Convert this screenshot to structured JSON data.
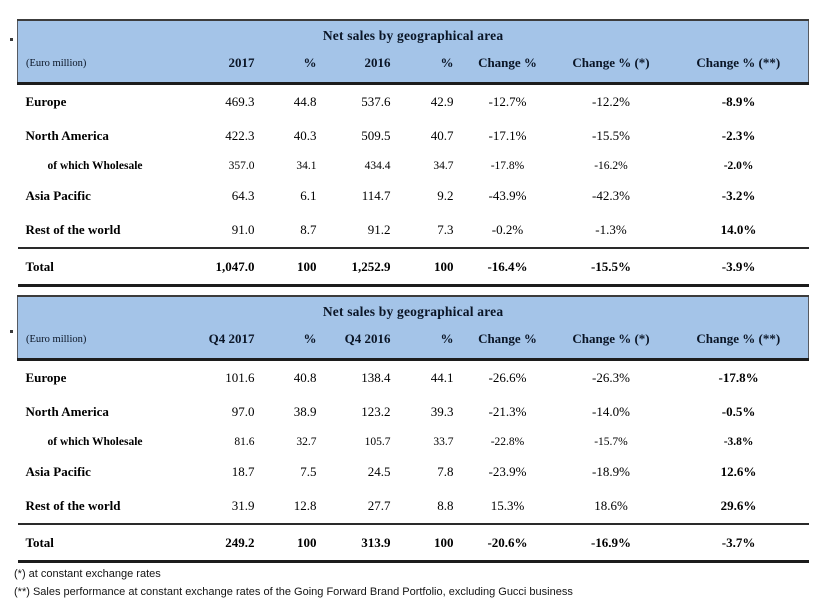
{
  "colors": {
    "header_fill": "#a4c4e8",
    "header_text": "#0a1526",
    "rule_dark": "#1c1c1c",
    "body_text": "#000000"
  },
  "tables": [
    {
      "title": "Net sales by geographical area",
      "unit_label": "(Euro million)",
      "columns": [
        "2017",
        "%",
        "2016",
        "%",
        "Change %",
        "Change % (*)",
        "Change % (**)"
      ],
      "rows": [
        {
          "label": "Europe",
          "indent": false,
          "values": [
            "469.3",
            "44.8",
            "537.6",
            "42.9",
            "-12.7%",
            "-12.2%",
            "-8.9%"
          ]
        },
        {
          "label": "North America",
          "indent": false,
          "values": [
            "422.3",
            "40.3",
            "509.5",
            "40.7",
            "-17.1%",
            "-15.5%",
            "-2.3%"
          ]
        },
        {
          "label": "of which Wholesale",
          "indent": true,
          "values": [
            "357.0",
            "34.1",
            "434.4",
            "34.7",
            "-17.8%",
            "-16.2%",
            "-2.0%"
          ]
        },
        {
          "label": "Asia Pacific",
          "indent": false,
          "values": [
            "64.3",
            "6.1",
            "114.7",
            "9.2",
            "-43.9%",
            "-42.3%",
            "-3.2%"
          ]
        },
        {
          "label": "Rest of the world",
          "indent": false,
          "values": [
            "91.0",
            "8.7",
            "91.2",
            "7.3",
            "-0.2%",
            "-1.3%",
            "14.0%"
          ]
        }
      ],
      "total": {
        "label": "Total",
        "values": [
          "1,047.0",
          "100",
          "1,252.9",
          "100",
          "-16.4%",
          "-15.5%",
          "-3.9%"
        ]
      }
    },
    {
      "title": "Net sales by geographical area",
      "unit_label": "(Euro million)",
      "columns": [
        "Q4 2017",
        "%",
        "Q4 2016",
        "%",
        "Change %",
        "Change % (*)",
        "Change % (**)"
      ],
      "rows": [
        {
          "label": "Europe",
          "indent": false,
          "values": [
            "101.6",
            "40.8",
            "138.4",
            "44.1",
            "-26.6%",
            "-26.3%",
            "-17.8%"
          ]
        },
        {
          "label": "North America",
          "indent": false,
          "values": [
            "97.0",
            "38.9",
            "123.2",
            "39.3",
            "-21.3%",
            "-14.0%",
            "-0.5%"
          ]
        },
        {
          "label": "of which Wholesale",
          "indent": true,
          "values": [
            "81.6",
            "32.7",
            "105.7",
            "33.7",
            "-22.8%",
            "-15.7%",
            "-3.8%"
          ]
        },
        {
          "label": "Asia Pacific",
          "indent": false,
          "values": [
            "18.7",
            "7.5",
            "24.5",
            "7.8",
            "-23.9%",
            "-18.9%",
            "12.6%"
          ]
        },
        {
          "label": "Rest of the world",
          "indent": false,
          "values": [
            "31.9",
            "12.8",
            "27.7",
            "8.8",
            "15.3%",
            "18.6%",
            "29.6%"
          ]
        }
      ],
      "total": {
        "label": "Total",
        "values": [
          "249.2",
          "100",
          "313.9",
          "100",
          "-20.6%",
          "-16.9%",
          "-3.7%"
        ]
      }
    }
  ],
  "footnotes": [
    "(*) at constant exchange rates",
    "(**) Sales performance at constant exchange rates of the Going Forward Brand Portfolio, excluding Gucci business"
  ]
}
